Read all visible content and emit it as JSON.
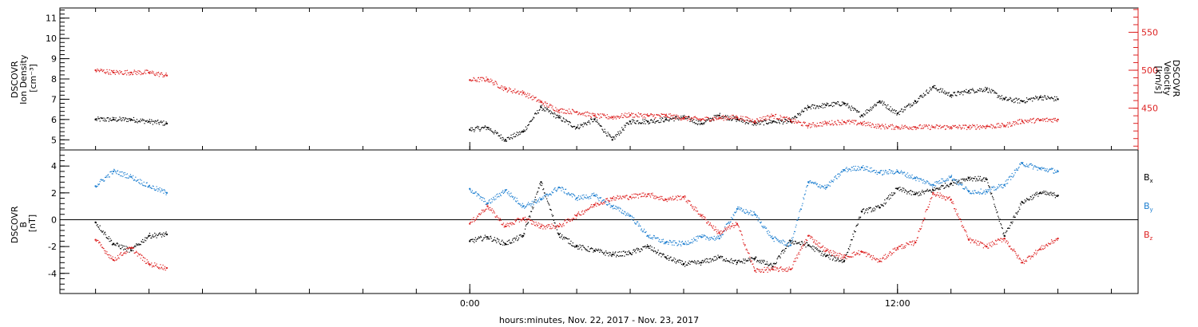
{
  "chart_data": [
    {
      "type": "scatter",
      "panel": "top",
      "left_axis": {
        "label_lines": [
          "DSCOVR",
          "Ion Density",
          "[cm⁻³]"
        ],
        "ylim": [
          4.5,
          11.5
        ],
        "ticks": [
          5,
          6,
          7,
          8,
          9,
          10,
          11
        ],
        "color": "#000000"
      },
      "right_axis": {
        "label_lines": [
          "DSCOVR",
          "Velocity",
          "[km/s]"
        ],
        "ylim": [
          395,
          582
        ],
        "ticks": [
          450,
          500,
          550
        ],
        "color": "#dd2222"
      },
      "x_hours": [
        -10.5,
        -10.0,
        -9.5,
        -9.0,
        -8.5,
        0.0,
        0.5,
        1.0,
        1.5,
        2.0,
        2.5,
        3.0,
        3.5,
        4.0,
        4.5,
        5.0,
        5.5,
        6.0,
        6.5,
        7.0,
        7.5,
        8.0,
        8.5,
        9.0,
        9.5,
        10.0,
        10.5,
        11.0,
        11.5,
        12.0,
        12.5,
        13.0,
        13.5,
        14.0,
        14.5,
        15.0,
        15.5,
        16.0,
        16.5
      ],
      "series": [
        {
          "axis": "left",
          "color": "#000000",
          "values": [
            6.0,
            6.0,
            6.0,
            5.9,
            5.8,
            5.5,
            5.6,
            5.0,
            5.4,
            6.6,
            6.1,
            5.6,
            6.0,
            5.0,
            5.9,
            5.9,
            6.0,
            6.1,
            5.8,
            6.2,
            6.0,
            5.8,
            5.9,
            5.9,
            6.6,
            6.7,
            6.8,
            6.2,
            6.9,
            6.3,
            6.9,
            7.6,
            7.2,
            7.4,
            7.5,
            7.0,
            6.9,
            7.1,
            7.0
          ]
        },
        {
          "axis": "right",
          "color": "#dd2222",
          "values": [
            500,
            497,
            497,
            497,
            493,
            487,
            488,
            475,
            470,
            458,
            447,
            445,
            440,
            438,
            441,
            440,
            440,
            437,
            435,
            437,
            438,
            433,
            440,
            434,
            427,
            430,
            432,
            430,
            426,
            425,
            425,
            425,
            425,
            425,
            426,
            427,
            433,
            434,
            435
          ]
        }
      ]
    },
    {
      "type": "scatter",
      "panel": "bottom",
      "left_axis": {
        "label_lines": [
          "DSCOVR",
          "B",
          "[nT]"
        ],
        "ylim": [
          -5.5,
          5.2
        ],
        "ticks": [
          -4,
          -2,
          0,
          2,
          4
        ],
        "color": "#000000"
      },
      "zero_line": true,
      "x_hours": [
        -10.5,
        -10.0,
        -9.5,
        -9.0,
        -8.5,
        0.0,
        0.5,
        1.0,
        1.5,
        2.0,
        2.5,
        3.0,
        3.5,
        4.0,
        4.5,
        5.0,
        5.5,
        6.0,
        6.5,
        7.0,
        7.5,
        8.0,
        8.5,
        9.0,
        9.5,
        10.0,
        10.5,
        11.0,
        11.5,
        12.0,
        12.5,
        13.0,
        13.5,
        14.0,
        14.5,
        15.0,
        15.5,
        16.0,
        16.5
      ],
      "series": [
        {
          "name": "Bx",
          "legend": "B",
          "sub": "x",
          "color": "#000000",
          "values": [
            -0.2,
            -1.8,
            -2.3,
            -1.2,
            -1.1,
            -1.6,
            -1.3,
            -1.8,
            -1.2,
            2.8,
            -1.1,
            -2.0,
            -2.3,
            -2.6,
            -2.5,
            -2.0,
            -2.8,
            -3.3,
            -3.2,
            -2.8,
            -3.2,
            -2.9,
            -3.5,
            -1.6,
            -1.9,
            -2.7,
            -3.1,
            0.6,
            0.9,
            2.3,
            1.9,
            2.2,
            2.7,
            3.1,
            3.0,
            -1.2,
            1.3,
            2.0,
            1.8
          ]
        },
        {
          "name": "By",
          "legend": "B",
          "sub": "y",
          "color": "#1e7fd0",
          "values": [
            2.5,
            3.6,
            3.2,
            2.5,
            2.0,
            2.3,
            1.2,
            2.2,
            1.0,
            1.5,
            2.4,
            1.6,
            1.8,
            1.0,
            0.3,
            -1.2,
            -1.7,
            -1.8,
            -1.3,
            -1.4,
            0.8,
            0.4,
            -1.4,
            -1.9,
            2.8,
            2.4,
            3.7,
            3.9,
            3.5,
            3.6,
            3.1,
            2.6,
            3.2,
            2.1,
            2.1,
            2.6,
            4.2,
            3.8,
            3.6
          ]
        },
        {
          "name": "Bz",
          "legend": "B",
          "sub": "z",
          "color": "#dd2222",
          "values": [
            -1.5,
            -3.0,
            -2.1,
            -3.3,
            -3.6,
            -0.3,
            1.0,
            -0.5,
            0.1,
            -0.5,
            -0.5,
            0.3,
            1.1,
            1.6,
            1.7,
            1.9,
            1.5,
            1.7,
            0.3,
            -1.0,
            -0.3,
            -3.8,
            -3.7,
            -3.7,
            -1.2,
            -2.3,
            -2.8,
            -2.4,
            -3.1,
            -2.1,
            -1.7,
            2.0,
            1.5,
            -1.5,
            -2.0,
            -1.4,
            -3.2,
            -2.2,
            -1.4
          ]
        }
      ]
    }
  ],
  "x_axis": {
    "xlim": [
      -11.5,
      18.75
    ],
    "tick_labels": [
      {
        "hour": 0,
        "label": "0:00"
      },
      {
        "hour": 12,
        "label": "12:00"
      }
    ],
    "minor_tick_every_hours": 1.5,
    "title": "hours:minutes, Nov. 22, 2017 - Nov. 23, 2017"
  }
}
